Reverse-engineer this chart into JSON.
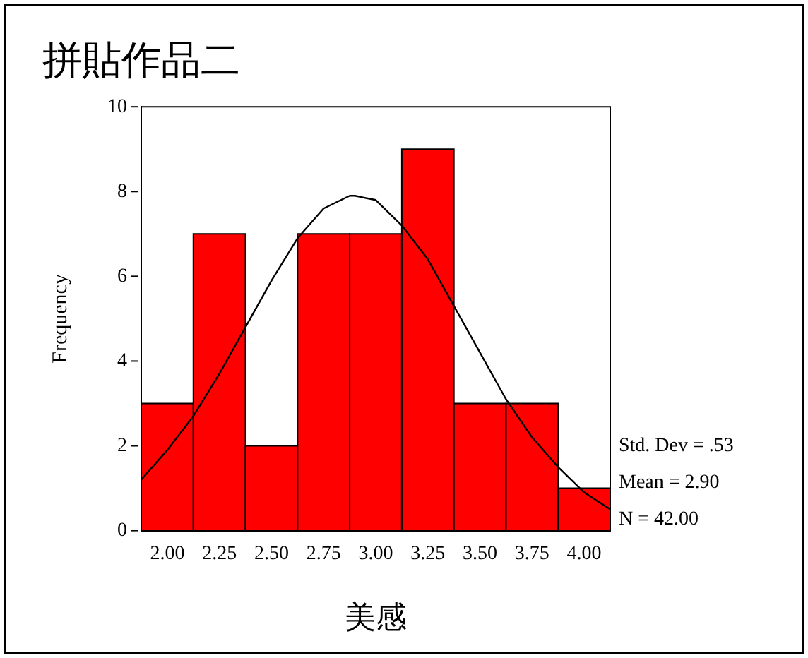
{
  "chart_data": {
    "type": "histogram",
    "title": "拼貼作品二",
    "xlabel": "美感",
    "ylabel": "Frequency",
    "bins": [
      1.875,
      2.125,
      2.375,
      2.625,
      2.875,
      3.125,
      3.375,
      3.625,
      3.875,
      4.125
    ],
    "values": [
      3,
      7,
      2,
      7,
      7,
      9,
      3,
      3,
      1
    ],
    "color": "#ff0000",
    "series": [
      {
        "type": "line",
        "color": "#000000",
        "x": [
          1.875,
          2.0,
          2.125,
          2.25,
          2.375,
          2.5,
          2.625,
          2.75,
          2.875,
          2.9,
          3.0,
          3.125,
          3.25,
          3.375,
          3.5,
          3.625,
          3.75,
          3.875,
          4.0,
          4.125
        ],
        "values": [
          1.2,
          1.9,
          2.7,
          3.7,
          4.8,
          5.9,
          6.9,
          7.6,
          7.9,
          7.9,
          7.8,
          7.2,
          6.4,
          5.3,
          4.2,
          3.1,
          2.2,
          1.5,
          0.9,
          0.5
        ]
      }
    ],
    "xlim": [
      1.875,
      4.125
    ],
    "xticks": [
      {
        "value": 2,
        "label": "2.00"
      },
      {
        "value": 2.25,
        "label": "2.25"
      },
      {
        "value": 2.5,
        "label": "2.50"
      },
      {
        "value": 2.75,
        "label": "2.75"
      },
      {
        "value": 3,
        "label": "3.00"
      },
      {
        "value": 3.25,
        "label": "3.25"
      },
      {
        "value": 3.5,
        "label": "3.50"
      },
      {
        "value": 3.75,
        "label": "3.75"
      },
      {
        "value": 4,
        "label": "4.00"
      }
    ],
    "ylim": [
      0,
      10
    ],
    "yticks": [
      0,
      2,
      4,
      6,
      8,
      10
    ],
    "annotations": [
      "Std. Dev = .53",
      "Mean = 2.90",
      "N = 42.00"
    ],
    "grid": false,
    "legend": false,
    "marker": "none",
    "line_style": "solid"
  }
}
